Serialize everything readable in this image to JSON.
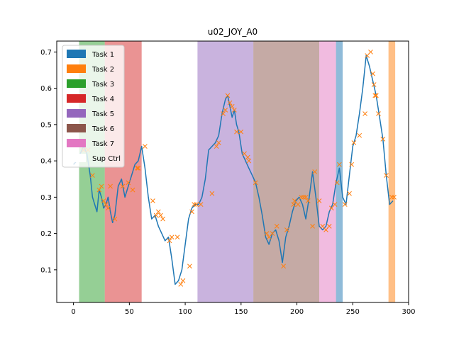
{
  "chart_data": {
    "type": "line",
    "title": "u02_JOY_A0",
    "xlabel": "",
    "ylabel": "",
    "xlim": [
      -15,
      300
    ],
    "ylim": [
      0.01,
      0.73
    ],
    "xticks": [
      0,
      50,
      100,
      150,
      200,
      250,
      300
    ],
    "yticks": [
      0.1,
      0.2,
      0.3,
      0.4,
      0.5,
      0.6,
      0.7
    ],
    "grid": false,
    "legend_position": "top-left",
    "legend": [
      {
        "label": "Task 1",
        "color": "#1f77b4"
      },
      {
        "label": "Task 2",
        "color": "#ff7f0e"
      },
      {
        "label": "Task 3",
        "color": "#2ca02c"
      },
      {
        "label": "Task 4",
        "color": "#d62728"
      },
      {
        "label": "Task 5",
        "color": "#9467bd"
      },
      {
        "label": "Task 6",
        "color": "#8c564b"
      },
      {
        "label": "Task 7",
        "color": "#e377c2"
      },
      {
        "label": "Sup Ctrl",
        "color": "#ffffff"
      }
    ],
    "regions": [
      {
        "task": "Task 3",
        "x0": 5,
        "x1": 28,
        "color": "#2ca02c"
      },
      {
        "task": "Task 4",
        "x0": 28,
        "x1": 61,
        "color": "#d62728"
      },
      {
        "task": "Task 5",
        "x0": 111,
        "x1": 161,
        "color": "#9467bd"
      },
      {
        "task": "Task 6",
        "x0": 161,
        "x1": 220,
        "color": "#8c564b"
      },
      {
        "task": "Task 7",
        "x0": 220,
        "x1": 235,
        "color": "#e377c2"
      },
      {
        "task": "Task 1",
        "x0": 235,
        "x1": 241,
        "color": "#1f77b4"
      },
      {
        "task": "Task 2",
        "x0": 282,
        "x1": 288,
        "color": "#ff7f0e"
      }
    ],
    "series": [
      {
        "color": "#1f77b4",
        "x": [
          0,
          3,
          6,
          9,
          12,
          15,
          17,
          19,
          21,
          23,
          25,
          27,
          29,
          31,
          33,
          35,
          37,
          40,
          43,
          46,
          49,
          52,
          55,
          58,
          61,
          64,
          67,
          70,
          73,
          76,
          79,
          82,
          85,
          88,
          91,
          94,
          97,
          100,
          103,
          106,
          109,
          112,
          115,
          118,
          121,
          124,
          127,
          130,
          133,
          136,
          138,
          140,
          142,
          144,
          146,
          148,
          151,
          154,
          157,
          160,
          163,
          166,
          169,
          172,
          175,
          178,
          181,
          184,
          187,
          190,
          193,
          196,
          199,
          202,
          205,
          208,
          211,
          214,
          217,
          220,
          223,
          226,
          229,
          232,
          235,
          238,
          241,
          244,
          247,
          250,
          253,
          256,
          259,
          262,
          265,
          268,
          271,
          274,
          277,
          280,
          283,
          286
        ],
        "y": [
          0.39,
          0.4,
          0.42,
          0.44,
          0.42,
          0.36,
          0.3,
          0.28,
          0.26,
          0.32,
          0.3,
          0.27,
          0.28,
          0.3,
          0.26,
          0.23,
          0.25,
          0.33,
          0.35,
          0.3,
          0.33,
          0.36,
          0.39,
          0.4,
          0.44,
          0.38,
          0.3,
          0.24,
          0.25,
          0.22,
          0.2,
          0.18,
          0.19,
          0.13,
          0.06,
          0.07,
          0.1,
          0.17,
          0.24,
          0.27,
          0.28,
          0.28,
          0.3,
          0.35,
          0.43,
          0.44,
          0.45,
          0.47,
          0.53,
          0.57,
          0.58,
          0.55,
          0.52,
          0.54,
          0.5,
          0.48,
          0.42,
          0.4,
          0.38,
          0.36,
          0.34,
          0.3,
          0.25,
          0.19,
          0.17,
          0.2,
          0.21,
          0.18,
          0.12,
          0.19,
          0.22,
          0.26,
          0.29,
          0.3,
          0.28,
          0.24,
          0.3,
          0.37,
          0.3,
          0.22,
          0.21,
          0.22,
          0.26,
          0.28,
          0.34,
          0.38,
          0.3,
          0.28,
          0.36,
          0.44,
          0.47,
          0.53,
          0.6,
          0.69,
          0.66,
          0.62,
          0.58,
          0.52,
          0.46,
          0.36,
          0.28,
          0.29
        ]
      },
      {
        "color": "#ff7f0e",
        "marker": "x",
        "x": [
          6,
          9,
          13,
          17,
          23,
          25,
          27,
          29,
          31,
          33,
          37,
          44,
          49,
          53,
          57,
          58,
          64,
          71,
          74,
          76,
          78,
          80,
          86,
          88,
          93,
          96,
          98,
          104,
          106,
          108,
          110,
          114,
          124,
          128,
          130,
          134,
          136,
          138,
          140,
          142,
          144,
          146,
          150,
          153,
          156,
          157,
          163,
          173,
          175,
          178,
          182,
          188,
          191,
          197,
          198,
          201,
          204,
          206,
          208,
          210,
          214,
          216,
          220,
          223,
          226,
          229,
          231,
          234,
          236,
          238,
          243,
          247,
          249,
          251,
          256,
          261,
          263,
          266,
          268,
          269,
          270,
          271,
          273,
          277,
          280,
          285,
          287
        ],
        "y": [
          0.41,
          0.43,
          0.43,
          0.36,
          0.32,
          0.33,
          0.29,
          0.28,
          0.27,
          0.33,
          0.24,
          0.33,
          0.34,
          0.32,
          0.38,
          0.38,
          0.44,
          0.29,
          0.25,
          0.26,
          0.25,
          0.24,
          0.18,
          0.19,
          0.19,
          0.06,
          0.07,
          0.11,
          0.26,
          0.28,
          0.28,
          0.28,
          0.31,
          0.44,
          0.45,
          0.53,
          0.54,
          0.58,
          0.56,
          0.55,
          0.54,
          0.48,
          0.48,
          0.42,
          0.41,
          0.4,
          0.34,
          0.2,
          0.19,
          0.2,
          0.22,
          0.11,
          0.21,
          0.28,
          0.29,
          0.28,
          0.3,
          0.3,
          0.3,
          0.29,
          0.22,
          0.37,
          0.29,
          0.22,
          0.21,
          0.22,
          0.27,
          0.28,
          0.34,
          0.39,
          0.28,
          0.31,
          0.39,
          0.45,
          0.47,
          0.53,
          0.69,
          0.7,
          0.64,
          0.61,
          0.58,
          0.58,
          0.53,
          0.46,
          0.36,
          0.3,
          0.3
        ]
      }
    ]
  }
}
